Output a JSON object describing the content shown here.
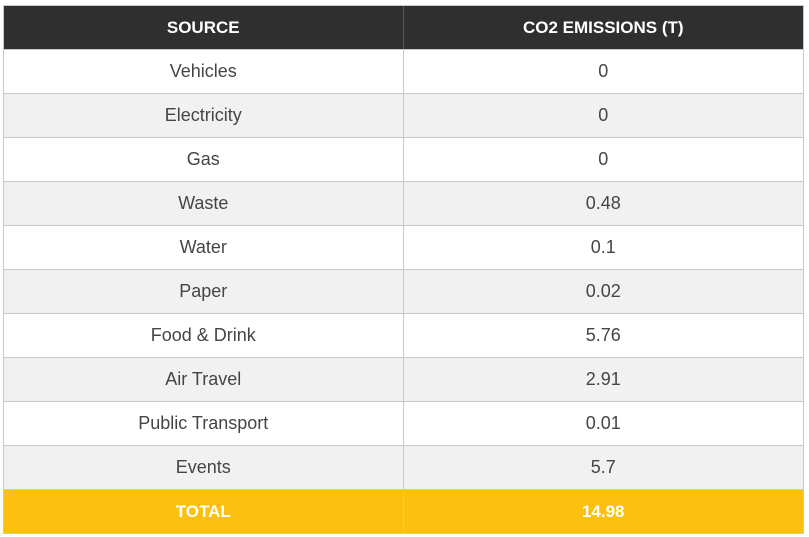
{
  "table": {
    "headers": {
      "source": "SOURCE",
      "emissions": "CO2 EMISSIONS (T)"
    },
    "rows": [
      {
        "source": "Vehicles",
        "emissions": "0"
      },
      {
        "source": "Electricity",
        "emissions": "0"
      },
      {
        "source": "Gas",
        "emissions": "0"
      },
      {
        "source": "Waste",
        "emissions": "0.48"
      },
      {
        "source": "Water",
        "emissions": "0.1"
      },
      {
        "source": "Paper",
        "emissions": "0.02"
      },
      {
        "source": "Food & Drink",
        "emissions": "5.76"
      },
      {
        "source": "Air Travel",
        "emissions": "2.91"
      },
      {
        "source": "Public Transport",
        "emissions": "0.01"
      },
      {
        "source": "Events",
        "emissions": "5.7"
      }
    ],
    "total": {
      "label": "TOTAL",
      "value": "14.98"
    }
  },
  "colors": {
    "header_bg": "#2f2f2f",
    "total_bg": "#fcc010",
    "row_alt_bg": "#f1f1f1"
  }
}
